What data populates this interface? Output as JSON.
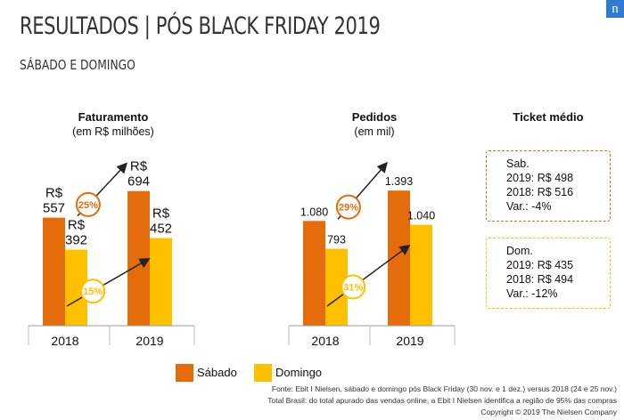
{
  "header": {
    "title": "RESULTADOS | PÓS BLACK FRIDAY 2019",
    "subtitle": "SÁBADO E DOMINGO",
    "logo_text": "n"
  },
  "colors": {
    "sabado": "#E46C0A",
    "domingo": "#FFC000",
    "arrow": "#222222"
  },
  "chart_data": [
    {
      "type": "bar",
      "title": "Faturamento",
      "subtitle": "(em R$ milhões)",
      "categories": [
        "2018",
        "2019"
      ],
      "series": [
        {
          "name": "Sábado",
          "values": [
            557,
            694
          ],
          "labels": [
            [
              "R$",
              "557"
            ],
            [
              "R$",
              "694"
            ]
          ]
        },
        {
          "name": "Domingo",
          "values": [
            392,
            452
          ],
          "labels": [
            [
              "R$",
              "392"
            ],
            [
              "R$",
              "452"
            ]
          ]
        }
      ],
      "growth": [
        {
          "series": "Sábado",
          "label": "25%"
        },
        {
          "series": "Domingo",
          "label": "15%"
        }
      ],
      "ylim": [
        0,
        780
      ]
    },
    {
      "type": "bar",
      "title": "Pedidos",
      "subtitle": "(em mil)",
      "categories": [
        "2018",
        "2019"
      ],
      "series": [
        {
          "name": "Sábado",
          "values": [
            1080,
            1393
          ],
          "labels": [
            [
              "1.080"
            ],
            [
              "1.393"
            ]
          ]
        },
        {
          "name": "Domingo",
          "values": [
            793,
            1040
          ],
          "labels": [
            [
              "793"
            ],
            [
              "1.040"
            ]
          ]
        }
      ],
      "growth": [
        {
          "series": "Sábado",
          "label": "29%"
        },
        {
          "series": "Domingo",
          "label": "31%"
        }
      ],
      "ylim": [
        0,
        1560
      ]
    }
  ],
  "ticket": {
    "title": "Ticket médio",
    "boxes": [
      {
        "lines": [
          "Sab.",
          "2019: R$ 498",
          "2018: R$ 516",
          "Var.: -4%"
        ]
      },
      {
        "lines": [
          "Dom.",
          "2019: R$ 435",
          "2018: R$ 494",
          "Var.: -12%"
        ]
      }
    ]
  },
  "legend": [
    {
      "label": "Sábado"
    },
    {
      "label": "Domingo"
    }
  ],
  "footer": {
    "source_line1": "Fonte: Ebit I Nielsen, sábado e domingo pós Black Friday (30 nov. e 1 dez.) versus 2018 (24 e 25 nov.)",
    "source_line2": "Total Brasil:  do total apurado das vendas online, a Ebit I Nielsen identifica a região de 95% das compras",
    "copyright": "Copyright © 2019 The Nielsen Company"
  }
}
